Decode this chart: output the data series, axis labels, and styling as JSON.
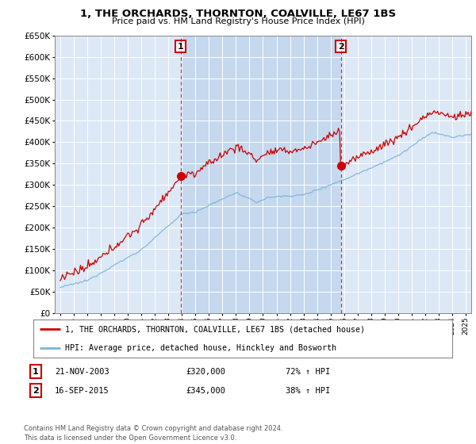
{
  "title": "1, THE ORCHARDS, THORNTON, COALVILLE, LE67 1BS",
  "subtitle": "Price paid vs. HM Land Registry's House Price Index (HPI)",
  "legend_line1": "1, THE ORCHARDS, THORNTON, COALVILLE, LE67 1BS (detached house)",
  "legend_line2": "HPI: Average price, detached house, Hinckley and Bosworth",
  "sale1_label": "1",
  "sale1_date": "21-NOV-2003",
  "sale1_price": "£320,000",
  "sale1_hpi": "72% ↑ HPI",
  "sale2_label": "2",
  "sale2_date": "16-SEP-2015",
  "sale2_price": "£345,000",
  "sale2_hpi": "38% ↑ HPI",
  "footer": "Contains HM Land Registry data © Crown copyright and database right 2024.\nThis data is licensed under the Open Government Licence v3.0.",
  "hpi_color": "#7ab4d8",
  "price_color": "#cc0000",
  "marker_color": "#cc0000",
  "background_color": "#ffffff",
  "grid_color": "#cccccc",
  "chart_bg": "#dce8f5",
  "highlight_bg": "#c5d8ee",
  "ylim_min": 0,
  "ylim_max": 650000,
  "sale1_year": 2003.9,
  "sale1_value": 320000,
  "sale2_year": 2015.75,
  "sale2_value": 345000,
  "vline1_year": 2003.9,
  "vline2_year": 2015.75,
  "xmin": 1994.6,
  "xmax": 2025.4
}
